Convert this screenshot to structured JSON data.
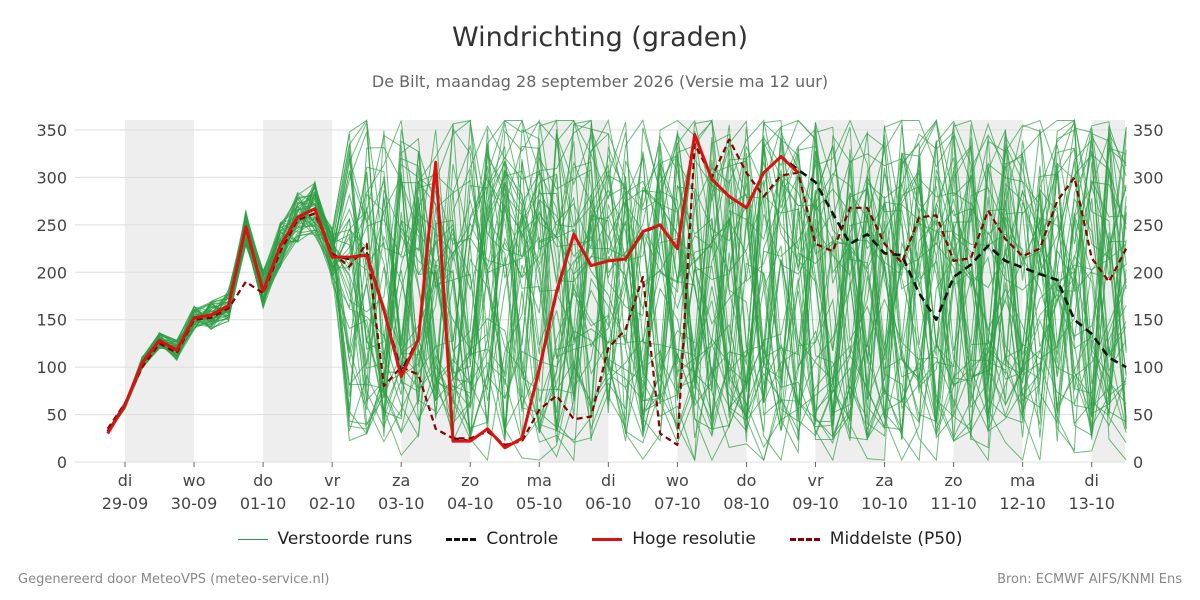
{
  "header": {
    "title": "Windrichting (graden)",
    "subtitle": "De Bilt, maandag 28 september 2026 (Versie ma 12 uur)"
  },
  "footer": {
    "left": "Gegenereerd door MeteoVPS (meteo-service.nl)",
    "right": "Bron: ECMWF AIFS/KNMI Ens"
  },
  "legend": [
    {
      "label": "Verstoorde runs",
      "color": "#2e9e44",
      "style": "thin"
    },
    {
      "label": "Controle",
      "color": "#111111",
      "style": "dashed"
    },
    {
      "label": "Hoge resolutie",
      "color": "#dd1111",
      "style": "solid"
    },
    {
      "label": "Middelste (P50)",
      "color": "#8b0000",
      "style": "dashed"
    }
  ],
  "chart_data": {
    "type": "line",
    "ylim": [
      0,
      360
    ],
    "yticks": [
      0,
      50,
      100,
      150,
      200,
      250,
      300,
      350
    ],
    "x_unit": "days since first day label (29-09)",
    "xlim": [
      -0.25,
      14.5
    ],
    "day_labels": [
      {
        "weekday": "di",
        "date": "29-09"
      },
      {
        "weekday": "wo",
        "date": "30-09"
      },
      {
        "weekday": "do",
        "date": "01-10"
      },
      {
        "weekday": "vr",
        "date": "02-10"
      },
      {
        "weekday": "za",
        "date": "03-10"
      },
      {
        "weekday": "zo",
        "date": "04-10"
      },
      {
        "weekday": "ma",
        "date": "05-10"
      },
      {
        "weekday": "di",
        "date": "06-10"
      },
      {
        "weekday": "wo",
        "date": "07-10"
      },
      {
        "weekday": "do",
        "date": "08-10"
      },
      {
        "weekday": "vr",
        "date": "09-10"
      },
      {
        "weekday": "za",
        "date": "10-10"
      },
      {
        "weekday": "zo",
        "date": "11-10"
      },
      {
        "weekday": "ma",
        "date": "12-10"
      },
      {
        "weekday": "di",
        "date": "13-10"
      }
    ],
    "shaded_bands": [
      [
        0,
        1
      ],
      [
        2,
        3
      ],
      [
        4,
        5
      ],
      [
        6,
        7
      ],
      [
        8,
        9
      ],
      [
        10,
        11
      ],
      [
        12,
        13
      ],
      [
        14,
        14.5
      ]
    ],
    "colors": {
      "ensemble": "#2e9e44",
      "control": "#111111",
      "hires": "#dd1111",
      "median": "#8b0000",
      "band": "#eeeeee",
      "grid": "#dddddd"
    },
    "series": [
      {
        "name": "Controle",
        "style": "dashed",
        "x": [
          -0.25,
          0,
          0.25,
          0.5,
          0.75,
          1,
          1.25,
          1.5,
          1.75,
          2,
          2.25,
          2.5,
          2.75,
          3,
          3.25,
          3.5,
          3.75,
          4,
          4.25,
          4.5,
          4.75,
          5,
          5.25,
          5.5,
          5.75,
          6,
          6.25,
          6.5,
          6.75,
          7,
          7.25,
          7.5,
          7.75,
          8,
          8.25,
          8.5,
          8.75,
          9,
          9.25,
          9.5,
          9.75,
          10,
          10.25,
          10.5,
          10.75,
          11,
          11.25,
          11.5,
          11.75,
          12,
          12.25,
          12.5,
          12.75,
          13,
          13.25,
          13.5,
          13.75,
          14,
          14.25,
          14.5
        ],
        "y": [
          32,
          60,
          105,
          128,
          118,
          152,
          155,
          165,
          248,
          180,
          228,
          258,
          267,
          218,
          214,
          220,
          160,
          95,
          130,
          315,
          25,
          22,
          35,
          16,
          25,
          98,
          178,
          240,
          207,
          212,
          214,
          242,
          250,
          225,
          345,
          298,
          280,
          268,
          305,
          322,
          308,
          295,
          262,
          230,
          240,
          220,
          218,
          178,
          150,
          195,
          208,
          228,
          212,
          205,
          198,
          192,
          150,
          135,
          110,
          100
        ]
      },
      {
        "name": "Hoge resolutie",
        "style": "solid",
        "x": [
          -0.25,
          0,
          0.25,
          0.5,
          0.75,
          1,
          1.25,
          1.5,
          1.75,
          2,
          2.25,
          2.5,
          2.75,
          3,
          3.25,
          3.5,
          3.75,
          4,
          4.25,
          4.5,
          4.75,
          5,
          5.25,
          5.5,
          5.75,
          6,
          6.25,
          6.5,
          6.75,
          7,
          7.25,
          7.5,
          7.75,
          8,
          8.25,
          8.5,
          8.75,
          9,
          9.25,
          9.5,
          9.75
        ],
        "y": [
          30,
          60,
          105,
          128,
          118,
          152,
          155,
          165,
          248,
          180,
          228,
          258,
          267,
          216,
          216,
          218,
          160,
          90,
          130,
          316,
          22,
          22,
          35,
          15,
          25,
          98,
          180,
          240,
          207,
          212,
          214,
          243,
          250,
          225,
          345,
          298,
          280,
          268,
          305,
          322,
          305
        ]
      },
      {
        "name": "Middelste (P50)",
        "style": "dashed",
        "x": [
          -0.25,
          0,
          0.25,
          0.5,
          0.75,
          1,
          1.25,
          1.5,
          1.75,
          2,
          2.25,
          2.5,
          2.75,
          3,
          3.25,
          3.5,
          3.75,
          4,
          4.25,
          4.5,
          4.75,
          5,
          5.25,
          5.5,
          5.75,
          6,
          6.25,
          6.5,
          6.75,
          7,
          7.25,
          7.5,
          7.75,
          8,
          8.25,
          8.5,
          8.75,
          9,
          9.25,
          9.5,
          9.75,
          10,
          10.25,
          10.5,
          10.75,
          11,
          11.25,
          11.5,
          11.75,
          12,
          12.25,
          12.5,
          12.75,
          13,
          13.25,
          13.5,
          13.75,
          14,
          14.25,
          14.5
        ],
        "y": [
          35,
          62,
          100,
          125,
          115,
          150,
          152,
          162,
          190,
          178,
          222,
          255,
          262,
          220,
          206,
          230,
          80,
          100,
          92,
          35,
          25,
          25,
          32,
          18,
          22,
          55,
          70,
          45,
          48,
          120,
          140,
          195,
          30,
          18,
          335,
          300,
          340,
          305,
          280,
          302,
          305,
          230,
          222,
          268,
          268,
          230,
          210,
          258,
          260,
          212,
          215,
          265,
          235,
          217,
          225,
          275,
          300,
          215,
          190,
          225
        ]
      }
    ],
    "ensemble_member_count": 50
  }
}
